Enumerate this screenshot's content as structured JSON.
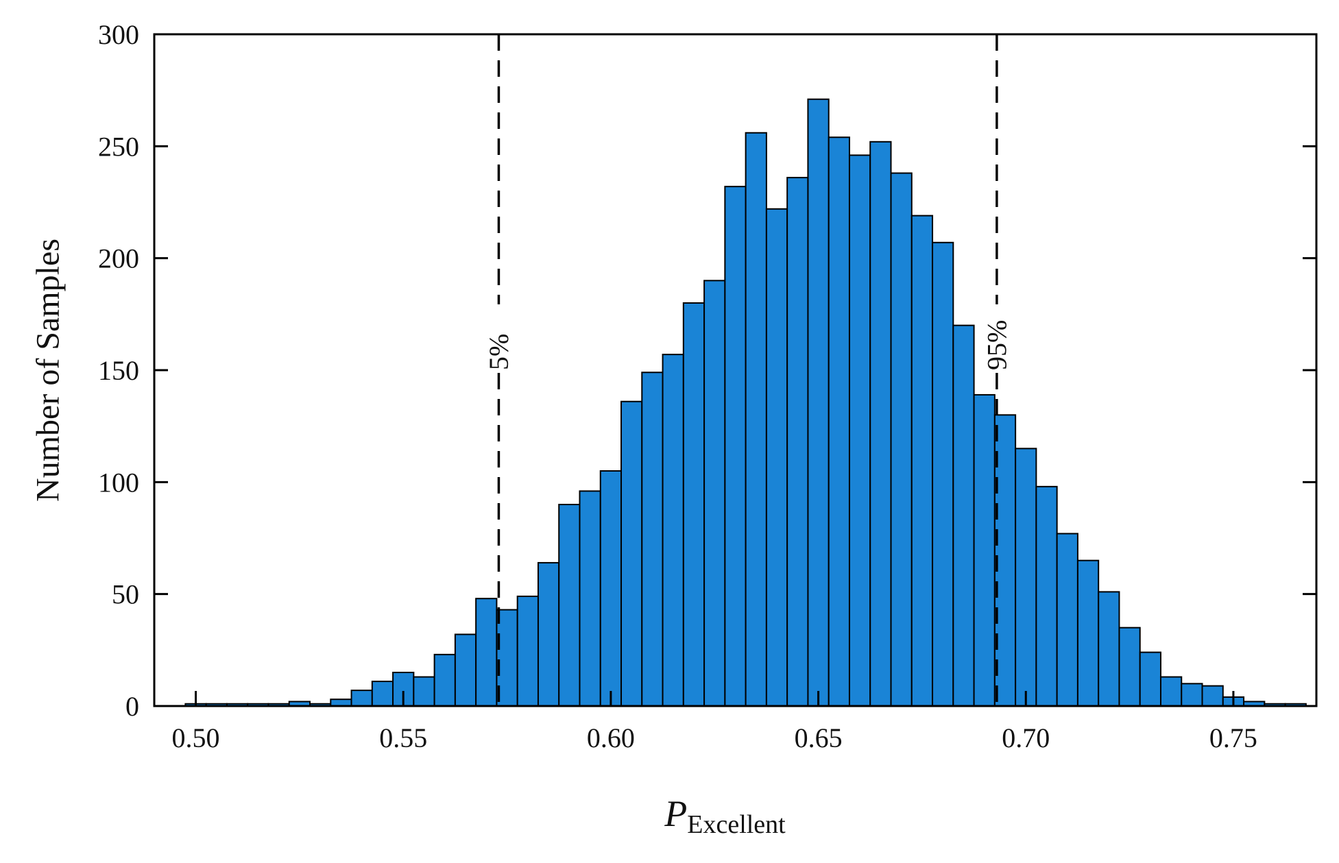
{
  "chart_data": {
    "type": "bar",
    "bar_color": "#1a84d6",
    "edge_color": "#000000",
    "bin_start": 0.4975,
    "bin_width": 0.005,
    "values": [
      1,
      1,
      1,
      1,
      1,
      2,
      1,
      3,
      7,
      11,
      15,
      13,
      23,
      32,
      48,
      43,
      49,
      64,
      90,
      96,
      105,
      136,
      149,
      157,
      180,
      190,
      232,
      256,
      222,
      236,
      271,
      254,
      246,
      252,
      238,
      219,
      207,
      170,
      139,
      130,
      115,
      98,
      77,
      65,
      51,
      35,
      24,
      13,
      10,
      9,
      4,
      2,
      1,
      1,
      0,
      2
    ],
    "xlim": [
      0.49,
      0.77
    ],
    "ylim": [
      0,
      300
    ],
    "x_ticks": [
      0.5,
      0.55,
      0.6,
      0.65,
      0.7,
      0.75
    ],
    "x_tick_labels": [
      "0.50",
      "0.55",
      "0.60",
      "0.65",
      "0.70",
      "0.75"
    ],
    "y_ticks": [
      0,
      50,
      100,
      150,
      200,
      250,
      300
    ],
    "y_tick_labels": [
      "0",
      "50",
      "100",
      "150",
      "200",
      "250",
      "300"
    ],
    "xlabel_main": "P",
    "xlabel_sub": "Excellent",
    "ylabel": "Number of Samples",
    "percentile_lines": [
      {
        "x": 0.573,
        "label": "5%"
      },
      {
        "x": 0.693,
        "label": "95%"
      }
    ],
    "grid": false
  }
}
